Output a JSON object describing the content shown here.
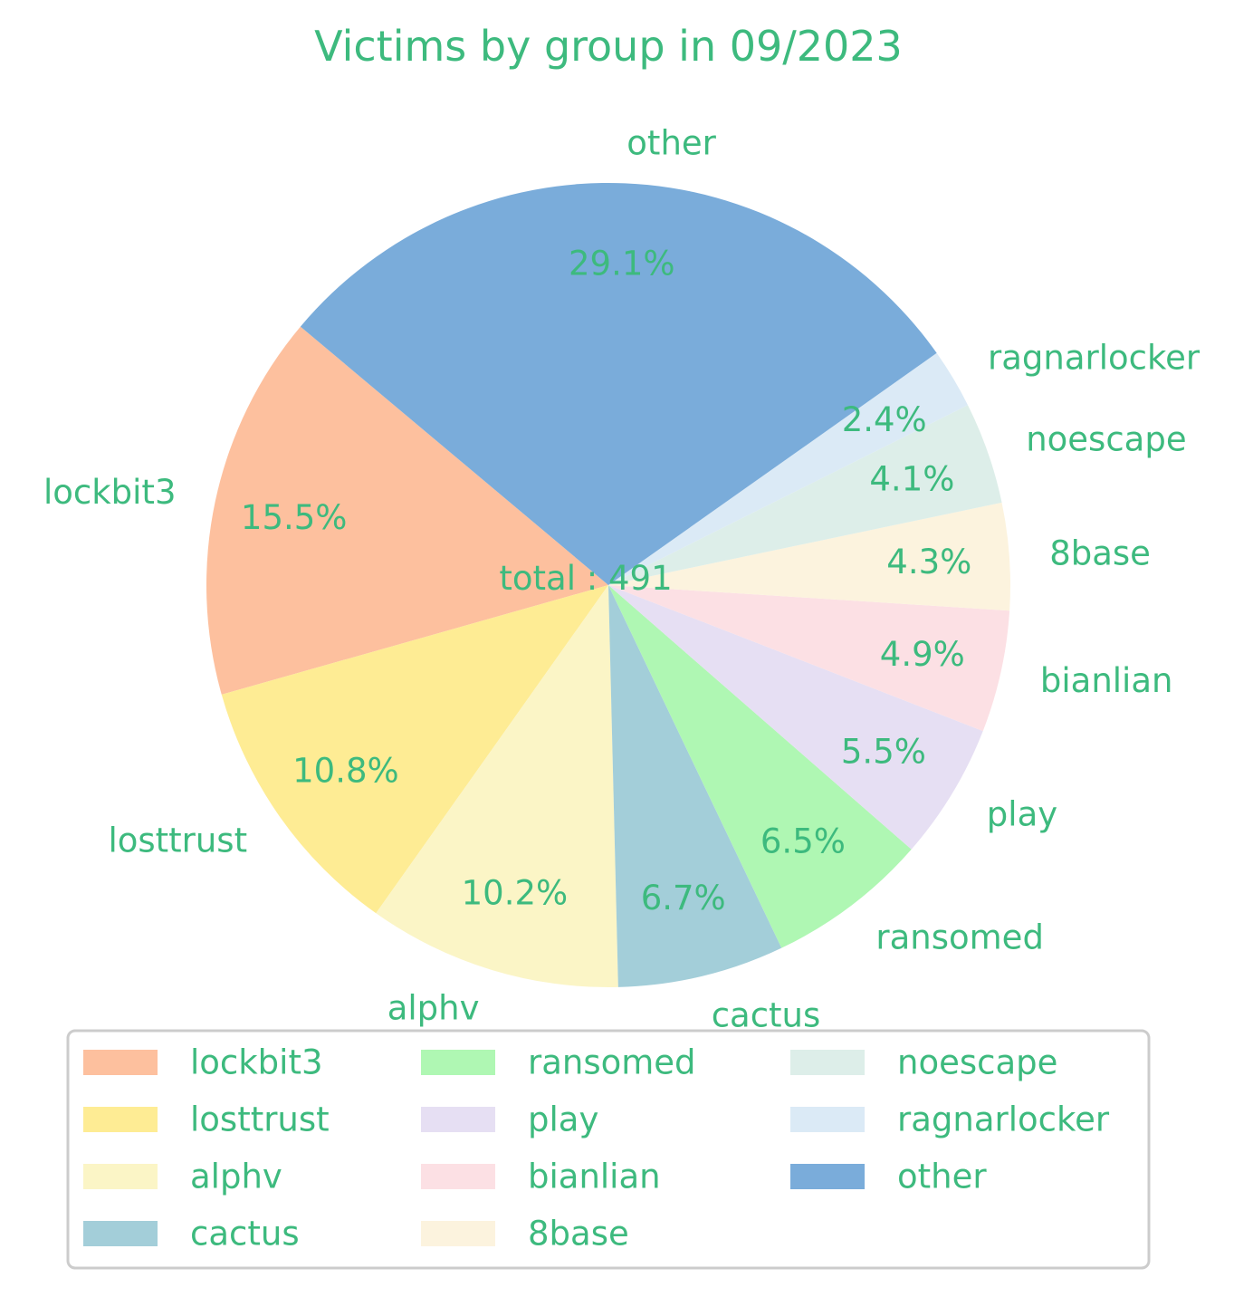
{
  "text_color": "#3dba7e",
  "chart_data": {
    "type": "pie",
    "title": "Victims by group in 09/2023",
    "center_label": "total : 491",
    "start_angle_deg": 140,
    "direction": "counterclockwise",
    "legend_position": "bottom",
    "legend_columns": 3,
    "slices": [
      {
        "label": "lockbit3",
        "percent": 15.5,
        "pct_label": "15.5%",
        "color": "#fdc09e"
      },
      {
        "label": "losttrust",
        "percent": 10.8,
        "pct_label": "10.8%",
        "color": "#feec94"
      },
      {
        "label": "alphv",
        "percent": 10.2,
        "pct_label": "10.2%",
        "color": "#fbf5c6"
      },
      {
        "label": "cactus",
        "percent": 6.7,
        "pct_label": "6.7%",
        "color": "#a3ced9"
      },
      {
        "label": "ransomed",
        "percent": 6.5,
        "pct_label": "6.5%",
        "color": "#aff7b3"
      },
      {
        "label": "play",
        "percent": 5.5,
        "pct_label": "5.5%",
        "color": "#e6dff3"
      },
      {
        "label": "bianlian",
        "percent": 4.9,
        "pct_label": "4.9%",
        "color": "#fce0e4"
      },
      {
        "label": "8base",
        "percent": 4.3,
        "pct_label": "4.3%",
        "color": "#fcf3de"
      },
      {
        "label": "noescape",
        "percent": 4.1,
        "pct_label": "4.1%",
        "color": "#ddeee9"
      },
      {
        "label": "ragnarlocker",
        "percent": 2.4,
        "pct_label": "2.4%",
        "color": "#dbeaf6"
      },
      {
        "label": "other",
        "percent": 29.1,
        "pct_label": "29.1%",
        "color": "#7aacda"
      }
    ]
  }
}
